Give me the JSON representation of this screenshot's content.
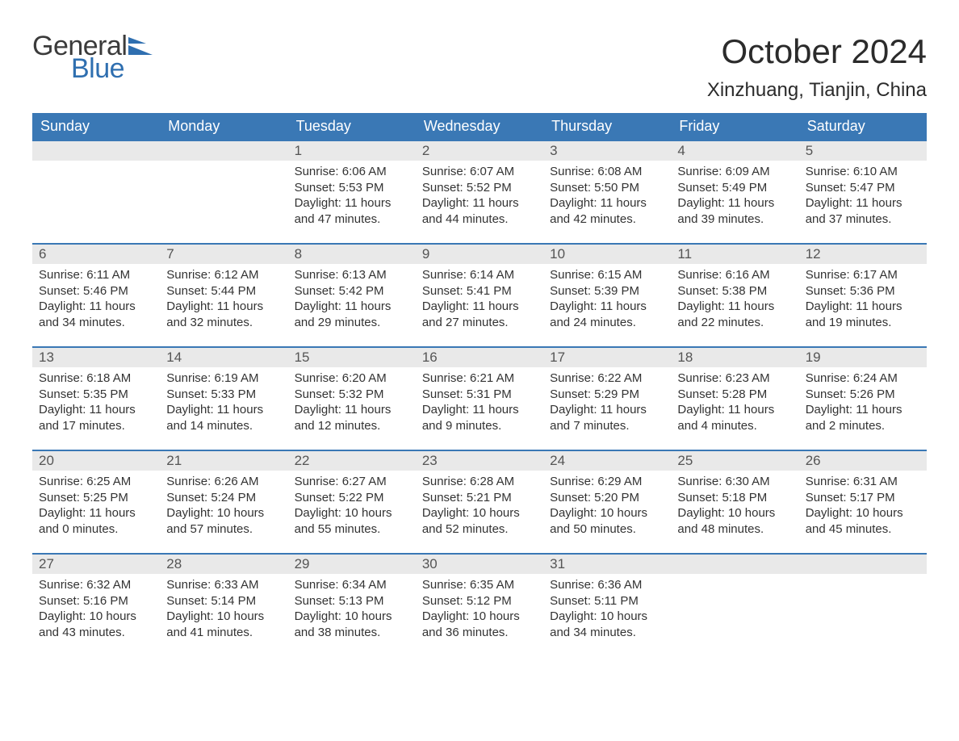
{
  "logo": {
    "word1": "General",
    "word2": "Blue",
    "general_color": "#3b3b3b",
    "blue_color": "#2f6fb0",
    "flag_color": "#2f6fb0"
  },
  "header": {
    "month_title": "October 2024",
    "location": "Xinzhuang, Tianjin, China",
    "title_fontsize": 42,
    "location_fontsize": 24,
    "text_color": "#2b2b2b"
  },
  "calendar": {
    "header_bg": "#3a78b5",
    "header_text_color": "#ffffff",
    "daynum_bg": "#e9e9e9",
    "text_color": "#333333",
    "row_border_color": "#3a78b5",
    "weekdays": [
      "Sunday",
      "Monday",
      "Tuesday",
      "Wednesday",
      "Thursday",
      "Friday",
      "Saturday"
    ],
    "labels": {
      "sunrise": "Sunrise:",
      "sunset": "Sunset:",
      "daylight": "Daylight:"
    },
    "weeks": [
      [
        null,
        null,
        {
          "day": "1",
          "sunrise": "6:06 AM",
          "sunset": "5:53 PM",
          "daylight_l1": "11 hours",
          "daylight_l2": "and 47 minutes."
        },
        {
          "day": "2",
          "sunrise": "6:07 AM",
          "sunset": "5:52 PM",
          "daylight_l1": "11 hours",
          "daylight_l2": "and 44 minutes."
        },
        {
          "day": "3",
          "sunrise": "6:08 AM",
          "sunset": "5:50 PM",
          "daylight_l1": "11 hours",
          "daylight_l2": "and 42 minutes."
        },
        {
          "day": "4",
          "sunrise": "6:09 AM",
          "sunset": "5:49 PM",
          "daylight_l1": "11 hours",
          "daylight_l2": "and 39 minutes."
        },
        {
          "day": "5",
          "sunrise": "6:10 AM",
          "sunset": "5:47 PM",
          "daylight_l1": "11 hours",
          "daylight_l2": "and 37 minutes."
        }
      ],
      [
        {
          "day": "6",
          "sunrise": "6:11 AM",
          "sunset": "5:46 PM",
          "daylight_l1": "11 hours",
          "daylight_l2": "and 34 minutes."
        },
        {
          "day": "7",
          "sunrise": "6:12 AM",
          "sunset": "5:44 PM",
          "daylight_l1": "11 hours",
          "daylight_l2": "and 32 minutes."
        },
        {
          "day": "8",
          "sunrise": "6:13 AM",
          "sunset": "5:42 PM",
          "daylight_l1": "11 hours",
          "daylight_l2": "and 29 minutes."
        },
        {
          "day": "9",
          "sunrise": "6:14 AM",
          "sunset": "5:41 PM",
          "daylight_l1": "11 hours",
          "daylight_l2": "and 27 minutes."
        },
        {
          "day": "10",
          "sunrise": "6:15 AM",
          "sunset": "5:39 PM",
          "daylight_l1": "11 hours",
          "daylight_l2": "and 24 minutes."
        },
        {
          "day": "11",
          "sunrise": "6:16 AM",
          "sunset": "5:38 PM",
          "daylight_l1": "11 hours",
          "daylight_l2": "and 22 minutes."
        },
        {
          "day": "12",
          "sunrise": "6:17 AM",
          "sunset": "5:36 PM",
          "daylight_l1": "11 hours",
          "daylight_l2": "and 19 minutes."
        }
      ],
      [
        {
          "day": "13",
          "sunrise": "6:18 AM",
          "sunset": "5:35 PM",
          "daylight_l1": "11 hours",
          "daylight_l2": "and 17 minutes."
        },
        {
          "day": "14",
          "sunrise": "6:19 AM",
          "sunset": "5:33 PM",
          "daylight_l1": "11 hours",
          "daylight_l2": "and 14 minutes."
        },
        {
          "day": "15",
          "sunrise": "6:20 AM",
          "sunset": "5:32 PM",
          "daylight_l1": "11 hours",
          "daylight_l2": "and 12 minutes."
        },
        {
          "day": "16",
          "sunrise": "6:21 AM",
          "sunset": "5:31 PM",
          "daylight_l1": "11 hours",
          "daylight_l2": "and 9 minutes."
        },
        {
          "day": "17",
          "sunrise": "6:22 AM",
          "sunset": "5:29 PM",
          "daylight_l1": "11 hours",
          "daylight_l2": "and 7 minutes."
        },
        {
          "day": "18",
          "sunrise": "6:23 AM",
          "sunset": "5:28 PM",
          "daylight_l1": "11 hours",
          "daylight_l2": "and 4 minutes."
        },
        {
          "day": "19",
          "sunrise": "6:24 AM",
          "sunset": "5:26 PM",
          "daylight_l1": "11 hours",
          "daylight_l2": "and 2 minutes."
        }
      ],
      [
        {
          "day": "20",
          "sunrise": "6:25 AM",
          "sunset": "5:25 PM",
          "daylight_l1": "11 hours",
          "daylight_l2": "and 0 minutes."
        },
        {
          "day": "21",
          "sunrise": "6:26 AM",
          "sunset": "5:24 PM",
          "daylight_l1": "10 hours",
          "daylight_l2": "and 57 minutes."
        },
        {
          "day": "22",
          "sunrise": "6:27 AM",
          "sunset": "5:22 PM",
          "daylight_l1": "10 hours",
          "daylight_l2": "and 55 minutes."
        },
        {
          "day": "23",
          "sunrise": "6:28 AM",
          "sunset": "5:21 PM",
          "daylight_l1": "10 hours",
          "daylight_l2": "and 52 minutes."
        },
        {
          "day": "24",
          "sunrise": "6:29 AM",
          "sunset": "5:20 PM",
          "daylight_l1": "10 hours",
          "daylight_l2": "and 50 minutes."
        },
        {
          "day": "25",
          "sunrise": "6:30 AM",
          "sunset": "5:18 PM",
          "daylight_l1": "10 hours",
          "daylight_l2": "and 48 minutes."
        },
        {
          "day": "26",
          "sunrise": "6:31 AM",
          "sunset": "5:17 PM",
          "daylight_l1": "10 hours",
          "daylight_l2": "and 45 minutes."
        }
      ],
      [
        {
          "day": "27",
          "sunrise": "6:32 AM",
          "sunset": "5:16 PM",
          "daylight_l1": "10 hours",
          "daylight_l2": "and 43 minutes."
        },
        {
          "day": "28",
          "sunrise": "6:33 AM",
          "sunset": "5:14 PM",
          "daylight_l1": "10 hours",
          "daylight_l2": "and 41 minutes."
        },
        {
          "day": "29",
          "sunrise": "6:34 AM",
          "sunset": "5:13 PM",
          "daylight_l1": "10 hours",
          "daylight_l2": "and 38 minutes."
        },
        {
          "day": "30",
          "sunrise": "6:35 AM",
          "sunset": "5:12 PM",
          "daylight_l1": "10 hours",
          "daylight_l2": "and 36 minutes."
        },
        {
          "day": "31",
          "sunrise": "6:36 AM",
          "sunset": "5:11 PM",
          "daylight_l1": "10 hours",
          "daylight_l2": "and 34 minutes."
        },
        null,
        null
      ]
    ]
  }
}
